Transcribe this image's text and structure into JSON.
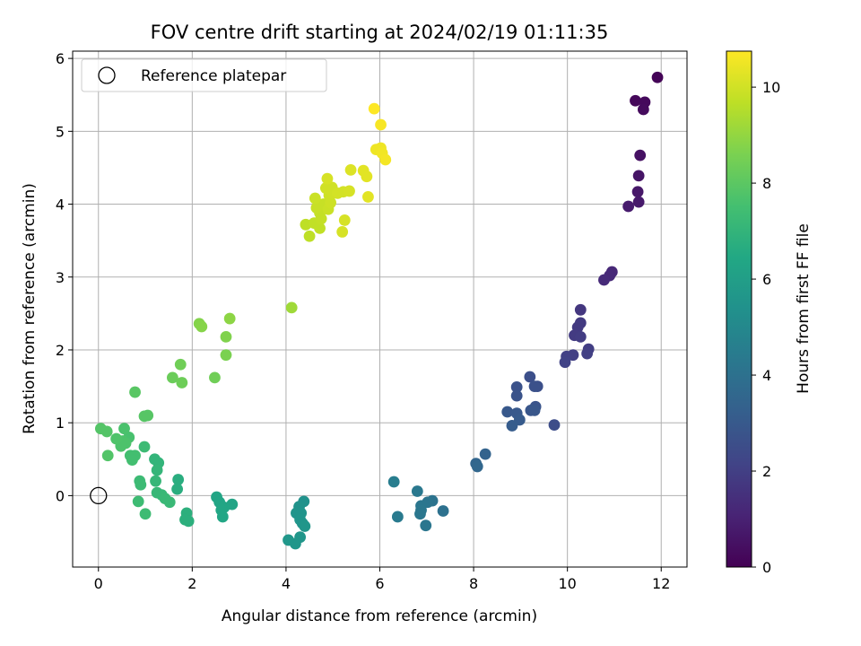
{
  "chart_data": {
    "type": "scatter",
    "title": "FOV centre drift starting at 2024/02/19 01:11:35",
    "xlabel": "Angular distance from reference (arcmin)",
    "ylabel": "Rotation from reference (arcmin)",
    "xlim": [
      -0.55,
      12.55
    ],
    "ylim": [
      -0.98,
      6.1
    ],
    "xticks": [
      0,
      2,
      4,
      6,
      8,
      10,
      12
    ],
    "yticks": [
      0,
      1,
      2,
      3,
      4,
      5,
      6
    ],
    "grid": true,
    "legend": {
      "placement": "top-left",
      "entries": [
        "Reference platepar"
      ]
    },
    "reference_point": {
      "x": 0,
      "y": 0
    },
    "colorbar": {
      "label": "Hours from first FF file",
      "range": [
        0,
        10.75
      ],
      "ticks": [
        0,
        2,
        4,
        6,
        8,
        10
      ],
      "colormap": "viridis"
    },
    "points": [
      {
        "x": 11.92,
        "y": 5.74,
        "h": 0.1
      },
      {
        "x": 11.45,
        "y": 5.42,
        "h": 0.2
      },
      {
        "x": 11.65,
        "y": 5.4,
        "h": 0.25
      },
      {
        "x": 11.62,
        "y": 5.3,
        "h": 0.3
      },
      {
        "x": 11.55,
        "y": 4.67,
        "h": 0.5
      },
      {
        "x": 11.52,
        "y": 4.39,
        "h": 0.6
      },
      {
        "x": 11.5,
        "y": 4.17,
        "h": 0.7
      },
      {
        "x": 11.52,
        "y": 4.03,
        "h": 0.75
      },
      {
        "x": 11.3,
        "y": 3.97,
        "h": 0.8
      },
      {
        "x": 10.95,
        "y": 3.07,
        "h": 1.2
      },
      {
        "x": 10.9,
        "y": 3.02,
        "h": 1.25
      },
      {
        "x": 10.78,
        "y": 2.96,
        "h": 1.3
      },
      {
        "x": 10.28,
        "y": 2.55,
        "h": 1.7
      },
      {
        "x": 10.22,
        "y": 2.31,
        "h": 1.8
      },
      {
        "x": 10.28,
        "y": 2.37,
        "h": 1.8
      },
      {
        "x": 10.15,
        "y": 2.2,
        "h": 1.85
      },
      {
        "x": 10.28,
        "y": 2.18,
        "h": 1.9
      },
      {
        "x": 10.45,
        "y": 2.01,
        "h": 1.95
      },
      {
        "x": 10.42,
        "y": 1.95,
        "h": 2.0
      },
      {
        "x": 10.12,
        "y": 1.93,
        "h": 2.0
      },
      {
        "x": 9.98,
        "y": 1.91,
        "h": 2.05
      },
      {
        "x": 9.95,
        "y": 1.83,
        "h": 2.1
      },
      {
        "x": 9.2,
        "y": 1.63,
        "h": 2.6
      },
      {
        "x": 9.36,
        "y": 1.5,
        "h": 2.6
      },
      {
        "x": 9.3,
        "y": 1.5,
        "h": 2.65
      },
      {
        "x": 8.92,
        "y": 1.49,
        "h": 2.7
      },
      {
        "x": 8.92,
        "y": 1.37,
        "h": 2.75
      },
      {
        "x": 9.32,
        "y": 1.22,
        "h": 2.8
      },
      {
        "x": 9.22,
        "y": 1.17,
        "h": 2.85
      },
      {
        "x": 9.3,
        "y": 1.17,
        "h": 2.9
      },
      {
        "x": 8.72,
        "y": 1.15,
        "h": 2.95
      },
      {
        "x": 8.92,
        "y": 1.13,
        "h": 3.0
      },
      {
        "x": 8.98,
        "y": 1.04,
        "h": 3.05
      },
      {
        "x": 9.72,
        "y": 0.97,
        "h": 2.5
      },
      {
        "x": 8.82,
        "y": 0.96,
        "h": 3.1
      },
      {
        "x": 8.25,
        "y": 0.57,
        "h": 3.4
      },
      {
        "x": 8.05,
        "y": 0.44,
        "h": 3.5
      },
      {
        "x": 8.08,
        "y": 0.4,
        "h": 3.55
      },
      {
        "x": 6.3,
        "y": 0.19,
        "h": 4.5
      },
      {
        "x": 6.8,
        "y": 0.06,
        "h": 4.3
      },
      {
        "x": 7.12,
        "y": -0.07,
        "h": 4.1
      },
      {
        "x": 7.02,
        "y": -0.09,
        "h": 4.15
      },
      {
        "x": 6.88,
        "y": -0.14,
        "h": 4.2
      },
      {
        "x": 6.88,
        "y": -0.2,
        "h": 4.25
      },
      {
        "x": 7.35,
        "y": -0.21,
        "h": 4.0
      },
      {
        "x": 6.86,
        "y": -0.25,
        "h": 4.25
      },
      {
        "x": 6.38,
        "y": -0.29,
        "h": 4.4
      },
      {
        "x": 6.98,
        "y": -0.41,
        "h": 4.2
      },
      {
        "x": 4.38,
        "y": -0.08,
        "h": 5.4
      },
      {
        "x": 4.28,
        "y": -0.15,
        "h": 5.45
      },
      {
        "x": 4.22,
        "y": -0.24,
        "h": 5.5
      },
      {
        "x": 4.32,
        "y": -0.24,
        "h": 5.5
      },
      {
        "x": 4.3,
        "y": -0.33,
        "h": 5.55
      },
      {
        "x": 4.35,
        "y": -0.38,
        "h": 5.55
      },
      {
        "x": 4.4,
        "y": -0.42,
        "h": 5.6
      },
      {
        "x": 4.3,
        "y": -0.57,
        "h": 5.6
      },
      {
        "x": 4.05,
        "y": -0.61,
        "h": 5.65
      },
      {
        "x": 4.2,
        "y": -0.66,
        "h": 5.6
      },
      {
        "x": 2.52,
        "y": -0.02,
        "h": 6.3
      },
      {
        "x": 2.58,
        "y": -0.09,
        "h": 6.3
      },
      {
        "x": 2.85,
        "y": -0.12,
        "h": 6.25
      },
      {
        "x": 2.68,
        "y": -0.16,
        "h": 6.3
      },
      {
        "x": 2.62,
        "y": -0.2,
        "h": 6.35
      },
      {
        "x": 2.65,
        "y": -0.29,
        "h": 6.35
      },
      {
        "x": 1.7,
        "y": 0.22,
        "h": 6.7
      },
      {
        "x": 1.68,
        "y": 0.09,
        "h": 6.7
      },
      {
        "x": 1.88,
        "y": -0.24,
        "h": 6.8
      },
      {
        "x": 1.85,
        "y": -0.33,
        "h": 6.8
      },
      {
        "x": 1.92,
        "y": -0.35,
        "h": 6.8
      },
      {
        "x": 1.2,
        "y": 0.5,
        "h": 7.0
      },
      {
        "x": 1.28,
        "y": 0.45,
        "h": 7.0
      },
      {
        "x": 1.25,
        "y": 0.35,
        "h": 7.05
      },
      {
        "x": 1.22,
        "y": 0.2,
        "h": 7.1
      },
      {
        "x": 1.25,
        "y": 0.04,
        "h": 7.15
      },
      {
        "x": 1.35,
        "y": 0.01,
        "h": 7.15
      },
      {
        "x": 1.42,
        "y": -0.04,
        "h": 7.2
      },
      {
        "x": 1.52,
        "y": -0.09,
        "h": 7.2
      },
      {
        "x": 0.88,
        "y": 0.2,
        "h": 7.3
      },
      {
        "x": 0.9,
        "y": 0.15,
        "h": 7.3
      },
      {
        "x": 0.85,
        "y": -0.08,
        "h": 7.35
      },
      {
        "x": 1.0,
        "y": -0.25,
        "h": 7.35
      },
      {
        "x": 0.98,
        "y": 0.67,
        "h": 7.3
      },
      {
        "x": 0.68,
        "y": 0.55,
        "h": 7.5
      },
      {
        "x": 0.78,
        "y": 0.55,
        "h": 7.5
      },
      {
        "x": 0.72,
        "y": 0.49,
        "h": 7.5
      },
      {
        "x": 0.65,
        "y": 0.8,
        "h": 7.6
      },
      {
        "x": 0.55,
        "y": 0.92,
        "h": 7.65
      },
      {
        "x": 0.52,
        "y": 0.75,
        "h": 7.7
      },
      {
        "x": 0.58,
        "y": 0.72,
        "h": 7.7
      },
      {
        "x": 0.48,
        "y": 0.68,
        "h": 7.7
      },
      {
        "x": 0.38,
        "y": 0.78,
        "h": 7.75
      },
      {
        "x": 0.2,
        "y": 0.55,
        "h": 7.8
      },
      {
        "x": 0.05,
        "y": 0.92,
        "h": 7.85
      },
      {
        "x": 0.18,
        "y": 0.88,
        "h": 7.85
      },
      {
        "x": 0.98,
        "y": 1.09,
        "h": 7.9
      },
      {
        "x": 1.05,
        "y": 1.1,
        "h": 7.9
      },
      {
        "x": 0.78,
        "y": 1.42,
        "h": 7.95
      },
      {
        "x": 1.58,
        "y": 1.62,
        "h": 8.3
      },
      {
        "x": 1.78,
        "y": 1.55,
        "h": 8.35
      },
      {
        "x": 1.75,
        "y": 1.8,
        "h": 8.4
      },
      {
        "x": 2.48,
        "y": 1.62,
        "h": 8.4
      },
      {
        "x": 2.72,
        "y": 1.93,
        "h": 8.6
      },
      {
        "x": 2.72,
        "y": 2.18,
        "h": 8.7
      },
      {
        "x": 2.15,
        "y": 2.36,
        "h": 8.75
      },
      {
        "x": 2.2,
        "y": 2.32,
        "h": 8.8
      },
      {
        "x": 2.8,
        "y": 2.43,
        "h": 8.9
      },
      {
        "x": 4.12,
        "y": 2.58,
        "h": 9.2
      },
      {
        "x": 4.42,
        "y": 3.72,
        "h": 9.7
      },
      {
        "x": 4.5,
        "y": 3.56,
        "h": 9.7
      },
      {
        "x": 4.6,
        "y": 3.74,
        "h": 9.75
      },
      {
        "x": 4.72,
        "y": 3.67,
        "h": 9.75
      },
      {
        "x": 4.75,
        "y": 3.8,
        "h": 9.8
      },
      {
        "x": 4.72,
        "y": 3.88,
        "h": 9.8
      },
      {
        "x": 4.65,
        "y": 3.95,
        "h": 9.85
      },
      {
        "x": 4.8,
        "y": 4.0,
        "h": 9.85
      },
      {
        "x": 4.62,
        "y": 4.08,
        "h": 9.9
      },
      {
        "x": 4.9,
        "y": 3.93,
        "h": 9.9
      },
      {
        "x": 4.95,
        "y": 4.02,
        "h": 9.95
      },
      {
        "x": 4.92,
        "y": 4.12,
        "h": 9.95
      },
      {
        "x": 5.0,
        "y": 4.15,
        "h": 10.0
      },
      {
        "x": 4.85,
        "y": 4.22,
        "h": 10.0
      },
      {
        "x": 4.98,
        "y": 4.23,
        "h": 10.0
      },
      {
        "x": 5.1,
        "y": 4.15,
        "h": 10.05
      },
      {
        "x": 5.22,
        "y": 4.17,
        "h": 10.05
      },
      {
        "x": 5.35,
        "y": 4.18,
        "h": 10.1
      },
      {
        "x": 4.88,
        "y": 4.35,
        "h": 10.1
      },
      {
        "x": 5.2,
        "y": 3.62,
        "h": 10.1
      },
      {
        "x": 5.25,
        "y": 3.78,
        "h": 10.1
      },
      {
        "x": 5.38,
        "y": 4.47,
        "h": 10.2
      },
      {
        "x": 5.65,
        "y": 4.46,
        "h": 10.3
      },
      {
        "x": 5.72,
        "y": 4.38,
        "h": 10.3
      },
      {
        "x": 5.75,
        "y": 4.1,
        "h": 10.3
      },
      {
        "x": 5.92,
        "y": 4.75,
        "h": 10.5
      },
      {
        "x": 6.02,
        "y": 4.77,
        "h": 10.5
      },
      {
        "x": 6.05,
        "y": 4.7,
        "h": 10.55
      },
      {
        "x": 6.12,
        "y": 4.61,
        "h": 10.6
      },
      {
        "x": 6.02,
        "y": 5.09,
        "h": 10.65
      },
      {
        "x": 5.88,
        "y": 5.31,
        "h": 10.75
      }
    ]
  }
}
